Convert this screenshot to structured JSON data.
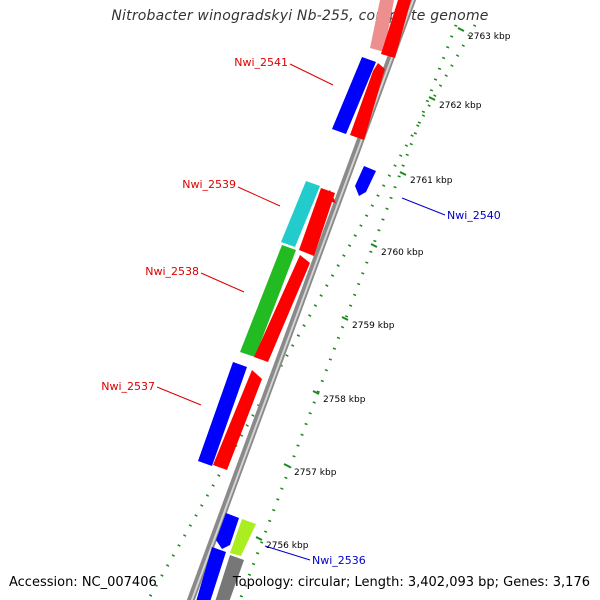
{
  "title": "Nitrobacter winogradskyi Nb-255, complete genome",
  "accession_text": "Accession: NC_007406",
  "stats_text": "Topology: circular; Length: 3,402,093 bp; Genes: 3,176",
  "colors": {
    "backbone": "#8c8c8c",
    "rna_dash": "#1a8a1a",
    "label_red": "#dd0000",
    "label_blue": "#0000cc"
  },
  "scale_ticks": [
    {
      "label": "2756 kbp"
    },
    {
      "label": "2757 kbp"
    },
    {
      "label": "2758 kbp"
    },
    {
      "label": "2759 kbp"
    },
    {
      "label": "2760 kbp"
    },
    {
      "label": "2761 kbp"
    },
    {
      "label": "2762 kbp"
    },
    {
      "label": "2763 kbp"
    }
  ],
  "gene_labels": [
    {
      "name": "Nwi_2541",
      "color": "#dd0000"
    },
    {
      "name": "Nwi_2540",
      "color": "#0000cc"
    },
    {
      "name": "Nwi_2539",
      "color": "#dd0000"
    },
    {
      "name": "Nwi_2538",
      "color": "#dd0000"
    },
    {
      "name": "Nwi_2537",
      "color": "#dd0000"
    },
    {
      "name": "Nwi_2536",
      "color": "#0000cc"
    }
  ]
}
